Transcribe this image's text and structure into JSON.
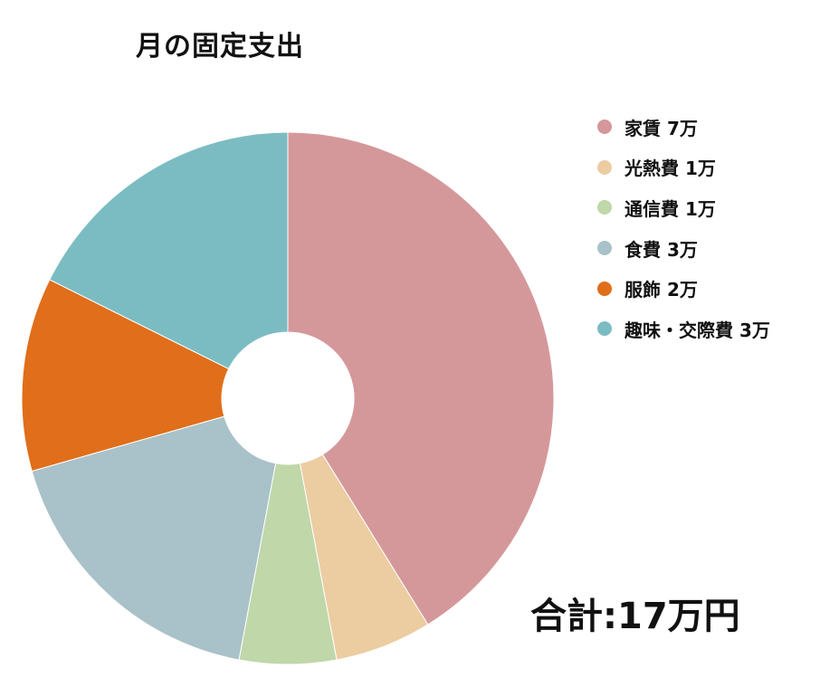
{
  "chart_data": {
    "type": "pie",
    "title": "月の固定支出",
    "categories": [
      "家賃 7万",
      "光熱費 1万",
      "通信費 1万",
      "食費 3万",
      "服飾 2万",
      "趣味・交際費 3万"
    ],
    "values": [
      7,
      1,
      1,
      3,
      2,
      3
    ],
    "colors": [
      "#d5989a",
      "#eccca1",
      "#bfd7a9",
      "#a9c1c8",
      "#e06e1a",
      "#7bbcc3"
    ],
    "donut": true,
    "legend_position": "right",
    "annotation": "合計:17万円"
  }
}
